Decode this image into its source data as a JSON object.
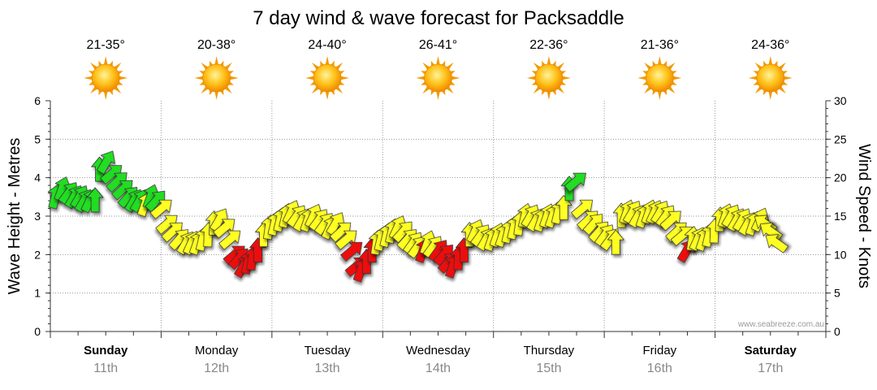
{
  "chart_data": {
    "type": "line",
    "title": "7 day wind & wave forecast for Packsaddle",
    "ylabel_left": "Wave Height - Metres",
    "ylabel_right": "Wind Speed - Knots",
    "ylim_left": [
      0,
      6
    ],
    "ylim_right": [
      0,
      30
    ],
    "left_ticks": [
      "0",
      "1",
      "2",
      "3",
      "4",
      "5",
      "6"
    ],
    "right_ticks": [
      "0",
      "5",
      "10",
      "15",
      "20",
      "25",
      "30"
    ],
    "watermark": "www.seabreeze.com.au",
    "days": [
      {
        "name": "Sunday",
        "date": "11th",
        "temps": "21-35°",
        "bold": true
      },
      {
        "name": "Monday",
        "date": "12th",
        "temps": "20-38°",
        "bold": false
      },
      {
        "name": "Tuesday",
        "date": "13th",
        "temps": "24-40°",
        "bold": false
      },
      {
        "name": "Wednesday",
        "date": "14th",
        "temps": "26-41°",
        "bold": false
      },
      {
        "name": "Thursday",
        "date": "15th",
        "temps": "22-36°",
        "bold": false
      },
      {
        "name": "Friday",
        "date": "16th",
        "temps": "21-36°",
        "bold": false
      },
      {
        "name": "Saturday",
        "date": "17th",
        "temps": "24-36°",
        "bold": true
      }
    ],
    "weather_icon": "sun-icon",
    "colors": {
      "calm": "#22dd22",
      "moderate": "#ffff22",
      "strong": "#ee1111"
    },
    "series": [
      {
        "name": "Wind speed (knots) with direction arrows",
        "x_unit": "days from start of Sunday",
        "points": [
          [
            0.0,
            17.5
          ],
          [
            0.06,
            18.5
          ],
          [
            0.12,
            18.0
          ],
          [
            0.17,
            17.5
          ],
          [
            0.22,
            17.5
          ],
          [
            0.26,
            17.0
          ],
          [
            0.31,
            17.0
          ],
          [
            0.36,
            17.0
          ],
          [
            0.4,
            21.0
          ],
          [
            0.46,
            22.0
          ],
          [
            0.51,
            20.5
          ],
          [
            0.56,
            19.5
          ],
          [
            0.61,
            18.5
          ],
          [
            0.66,
            17.5
          ],
          [
            0.71,
            17.0
          ],
          [
            0.76,
            17.0
          ],
          [
            0.81,
            16.5
          ],
          [
            0.86,
            17.5
          ],
          [
            0.91,
            17.0
          ],
          [
            0.96,
            16.0
          ],
          [
            1.01,
            14.0
          ],
          [
            1.06,
            13.0
          ],
          [
            1.12,
            12.0
          ],
          [
            1.18,
            11.5
          ],
          [
            1.23,
            11.5
          ],
          [
            1.28,
            11.5
          ],
          [
            1.33,
            12.0
          ],
          [
            1.38,
            12.5
          ],
          [
            1.43,
            14.0
          ],
          [
            1.48,
            14.5
          ],
          [
            1.53,
            13.5
          ],
          [
            1.58,
            12.0
          ],
          [
            1.62,
            10.0
          ],
          [
            1.66,
            9.5
          ],
          [
            1.7,
            8.5
          ],
          [
            1.74,
            9.0
          ],
          [
            1.78,
            9.5
          ],
          [
            1.83,
            10.5
          ],
          [
            1.88,
            12.5
          ],
          [
            1.93,
            13.5
          ],
          [
            1.98,
            14.0
          ],
          [
            2.03,
            14.5
          ],
          [
            2.08,
            15.0
          ],
          [
            2.13,
            15.5
          ],
          [
            2.18,
            15.0
          ],
          [
            2.23,
            14.5
          ],
          [
            2.28,
            14.5
          ],
          [
            2.33,
            15.0
          ],
          [
            2.38,
            14.5
          ],
          [
            2.43,
            14.0
          ],
          [
            2.48,
            13.5
          ],
          [
            2.53,
            14.0
          ],
          [
            2.58,
            13.0
          ],
          [
            2.63,
            12.0
          ],
          [
            2.68,
            10.5
          ],
          [
            2.72,
            8.5
          ],
          [
            2.76,
            8.0
          ],
          [
            2.81,
            9.0
          ],
          [
            2.86,
            10.5
          ],
          [
            2.9,
            11.5
          ],
          [
            2.94,
            12.0
          ],
          [
            2.99,
            12.5
          ],
          [
            3.04,
            13.0
          ],
          [
            3.09,
            13.5
          ],
          [
            3.14,
            13.0
          ],
          [
            3.18,
            12.0
          ],
          [
            3.23,
            11.5
          ],
          [
            3.27,
            11.0
          ],
          [
            3.32,
            10.5
          ],
          [
            3.36,
            11.5
          ],
          [
            3.41,
            11.0
          ],
          [
            3.46,
            10.5
          ],
          [
            3.51,
            10.0
          ],
          [
            3.55,
            9.0
          ],
          [
            3.59,
            8.5
          ],
          [
            3.64,
            9.5
          ],
          [
            3.69,
            10.5
          ],
          [
            3.74,
            12.5
          ],
          [
            3.79,
            13.0
          ],
          [
            3.84,
            12.5
          ],
          [
            3.89,
            12.0
          ],
          [
            3.94,
            12.0
          ],
          [
            3.99,
            12.5
          ],
          [
            4.04,
            12.5
          ],
          [
            4.09,
            13.0
          ],
          [
            4.14,
            13.5
          ],
          [
            4.19,
            14.0
          ],
          [
            4.24,
            15.0
          ],
          [
            4.29,
            15.0
          ],
          [
            4.34,
            14.5
          ],
          [
            4.39,
            14.5
          ],
          [
            4.44,
            15.0
          ],
          [
            4.49,
            15.0
          ],
          [
            4.54,
            15.5
          ],
          [
            4.59,
            16.0
          ],
          [
            4.64,
            18.5
          ],
          [
            4.7,
            19.5
          ],
          [
            4.76,
            16.0
          ],
          [
            4.81,
            14.5
          ],
          [
            4.86,
            14.0
          ],
          [
            4.91,
            13.0
          ],
          [
            4.96,
            12.5
          ],
          [
            5.01,
            12.0
          ],
          [
            5.06,
            11.5
          ],
          [
            5.11,
            15.0
          ],
          [
            5.16,
            15.5
          ],
          [
            5.21,
            15.5
          ],
          [
            5.26,
            15.0
          ],
          [
            5.31,
            15.0
          ],
          [
            5.36,
            15.5
          ],
          [
            5.41,
            15.5
          ],
          [
            5.46,
            15.5
          ],
          [
            5.51,
            15.0
          ],
          [
            5.56,
            14.5
          ],
          [
            5.61,
            13.0
          ],
          [
            5.66,
            12.5
          ],
          [
            5.7,
            10.5
          ],
          [
            5.75,
            12.0
          ],
          [
            5.8,
            12.0
          ],
          [
            5.85,
            12.0
          ],
          [
            5.9,
            12.5
          ],
          [
            5.95,
            13.0
          ],
          [
            6.0,
            14.5
          ],
          [
            6.05,
            15.0
          ],
          [
            6.1,
            15.0
          ],
          [
            6.15,
            14.5
          ],
          [
            6.2,
            14.5
          ],
          [
            6.25,
            14.0
          ],
          [
            6.3,
            14.0
          ],
          [
            6.36,
            14.5
          ],
          [
            6.41,
            14.0
          ],
          [
            6.46,
            13.0
          ],
          [
            6.51,
            11.5
          ]
        ]
      }
    ]
  }
}
